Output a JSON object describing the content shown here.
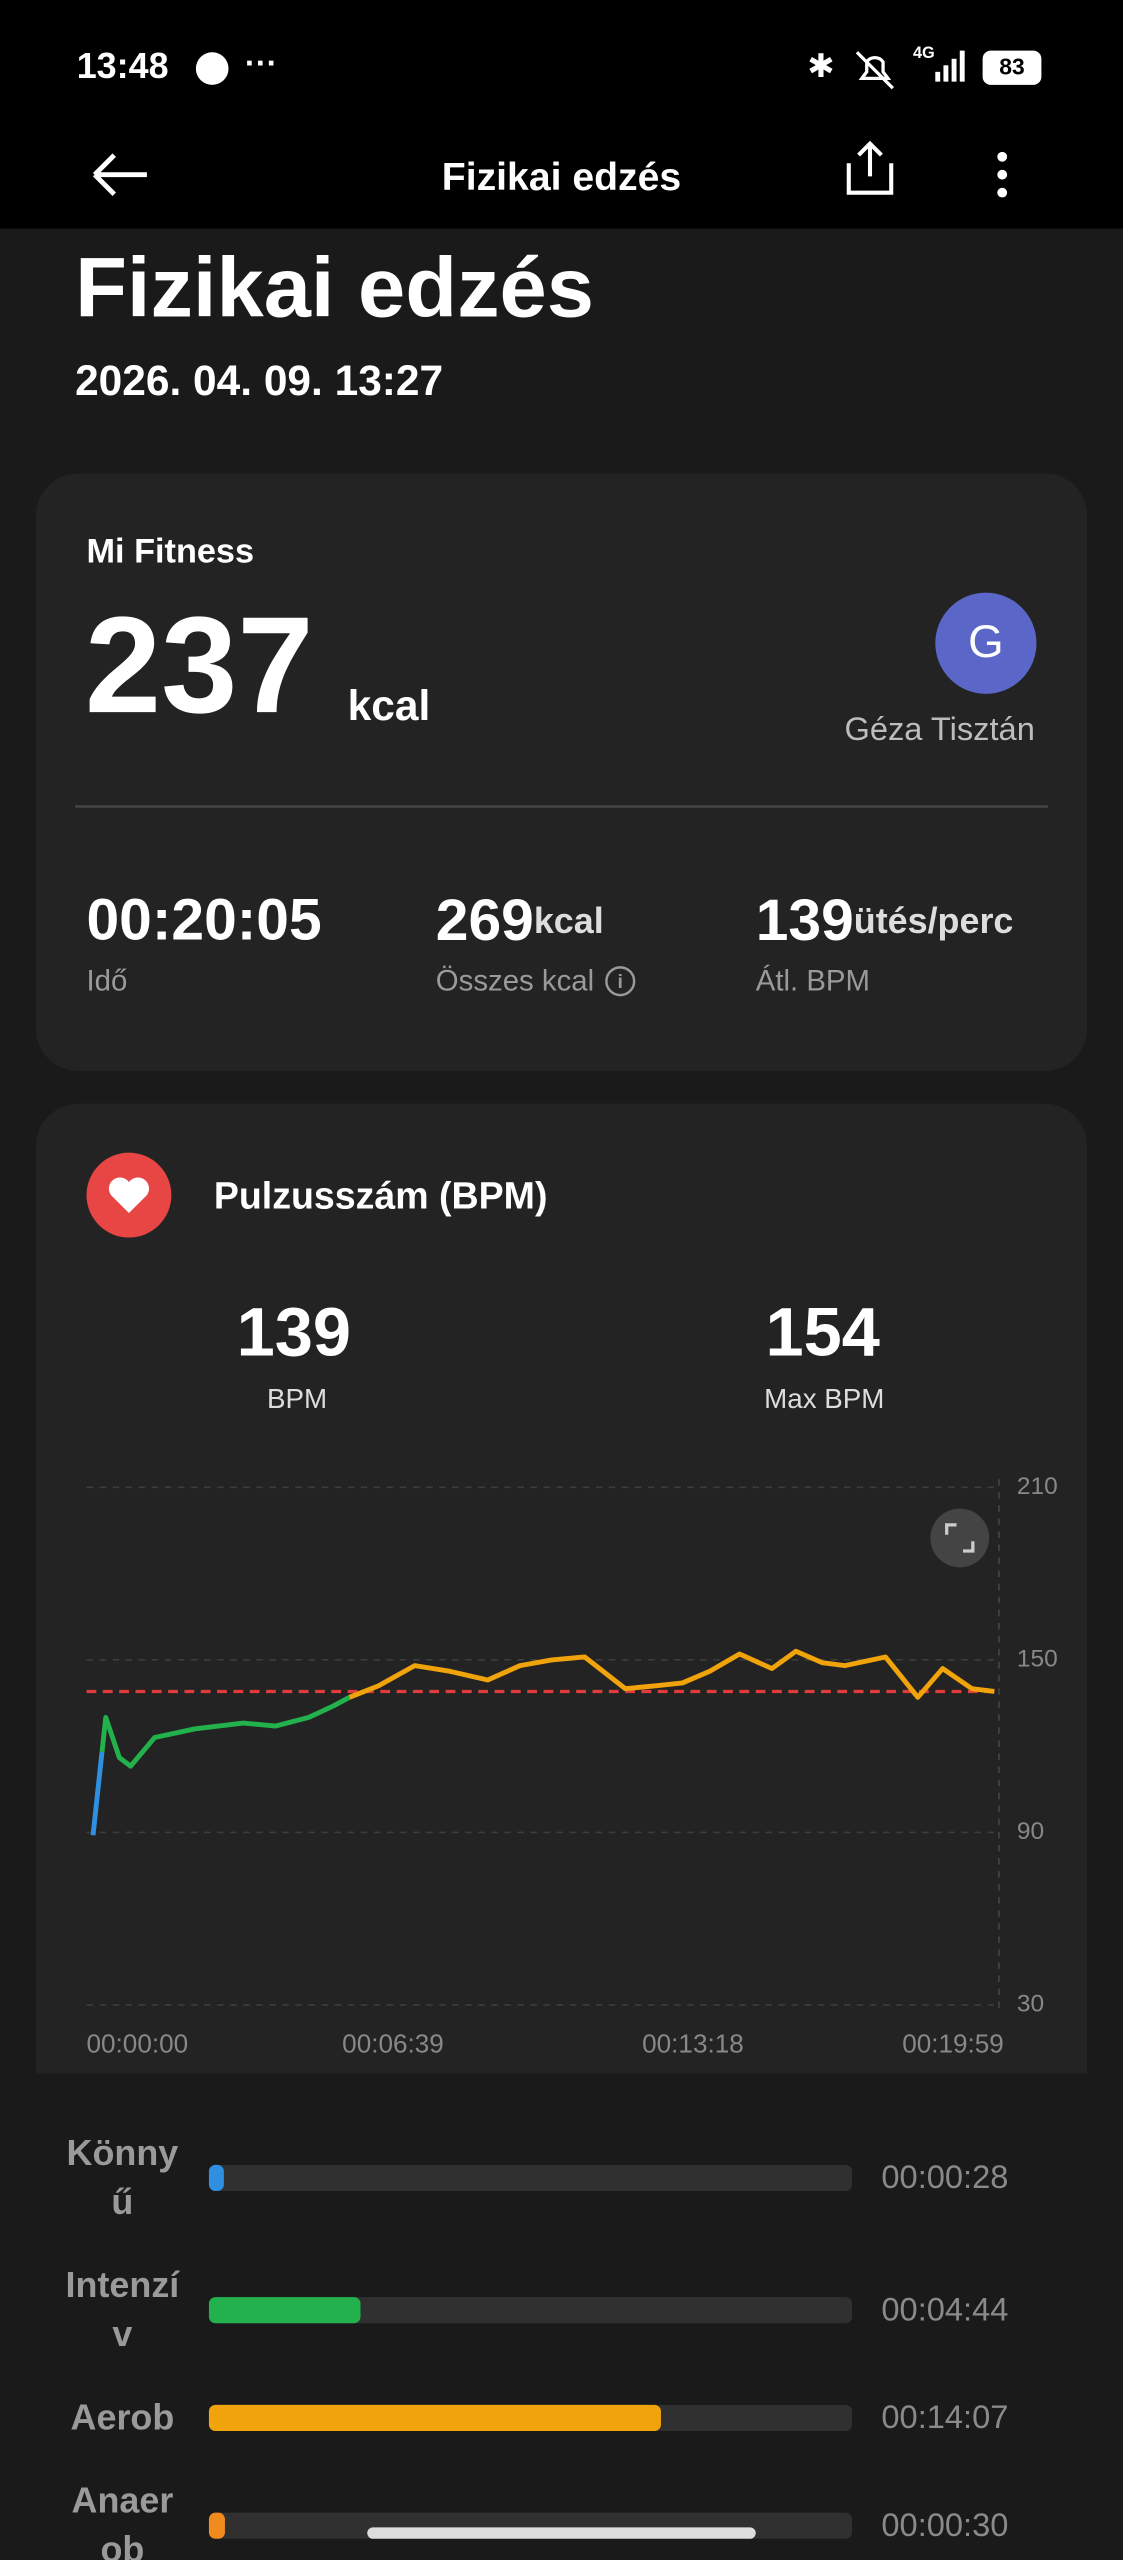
{
  "status_bar": {
    "time": "13:48",
    "network": "4G",
    "battery": "83"
  },
  "app_bar": {
    "title": "Fizikai edzés"
  },
  "header": {
    "title": "Fizikai edzés",
    "datetime": "2026. 04. 09. 13:27"
  },
  "summary": {
    "source": "Mi Fitness",
    "calories": "237",
    "calories_unit": "kcal",
    "user_initial": "G",
    "user_name": "Géza Tisztán",
    "stats": [
      {
        "value": "00:20:05",
        "label": "Idő"
      },
      {
        "value": "269",
        "unit": "kcal",
        "label": "Összes kcal"
      },
      {
        "value": "139",
        "unit": "ütés/perc",
        "label": "Átl. BPM"
      }
    ]
  },
  "heart_rate": {
    "title": "Pulzusszám (BPM)",
    "avg": {
      "value": "139",
      "label": "BPM"
    },
    "max": {
      "value": "154",
      "label": "Max BPM"
    }
  },
  "chart_data": [
    {
      "type": "line",
      "xlim": [
        0,
        1205
      ],
      "ylim": [
        30,
        210
      ],
      "yticks": [
        30,
        90,
        150,
        210
      ],
      "xticks": [
        {
          "value": 0,
          "label": "00:00:00"
        },
        {
          "value": 399,
          "label": "00:06:39"
        },
        {
          "value": 798,
          "label": "00:13:18"
        },
        {
          "value": 1199,
          "label": "00:19:59"
        }
      ],
      "grid": true,
      "reference_line": 139,
      "reference_color": "#e03c3c",
      "series": [
        {
          "color": "#2f8fe0",
          "x": [
            0,
            12
          ],
          "values": [
            89,
            118
          ]
        },
        {
          "color": "#22b14c",
          "x": [
            12,
            17,
            35,
            50,
            82,
            136,
            200,
            243,
            287,
            320,
            341
          ],
          "values": [
            118,
            130,
            116,
            113,
            123,
            126,
            128,
            127,
            130,
            134,
            137
          ]
        },
        {
          "color": "#f0a30a",
          "x": [
            341,
            380,
            428,
            475,
            525,
            568,
            610,
            654,
            708,
            750,
            784,
            820,
            860,
            903,
            935,
            970,
            1000,
            1054,
            1097,
            1130,
            1169,
            1199
          ],
          "values": [
            137,
            141,
            148,
            146,
            143,
            148,
            150,
            151,
            140,
            141,
            142,
            146,
            152,
            147,
            153,
            149,
            148,
            151,
            137,
            147,
            140,
            139
          ]
        }
      ]
    },
    {
      "type": "bar",
      "orientation": "horizontal",
      "categories": [
        "Könnyű",
        "Intenzív",
        "Aerob",
        "Anaerob"
      ],
      "values": [
        28,
        284,
        847,
        30
      ],
      "value_labels": [
        "00:00:28",
        "00:04:44",
        "00:14:07",
        "00:00:30"
      ],
      "colors": [
        "#2f8fe0",
        "#22b14c",
        "#f0a30a",
        "#f08c1e"
      ],
      "xlim": [
        0,
        1205
      ]
    }
  ]
}
